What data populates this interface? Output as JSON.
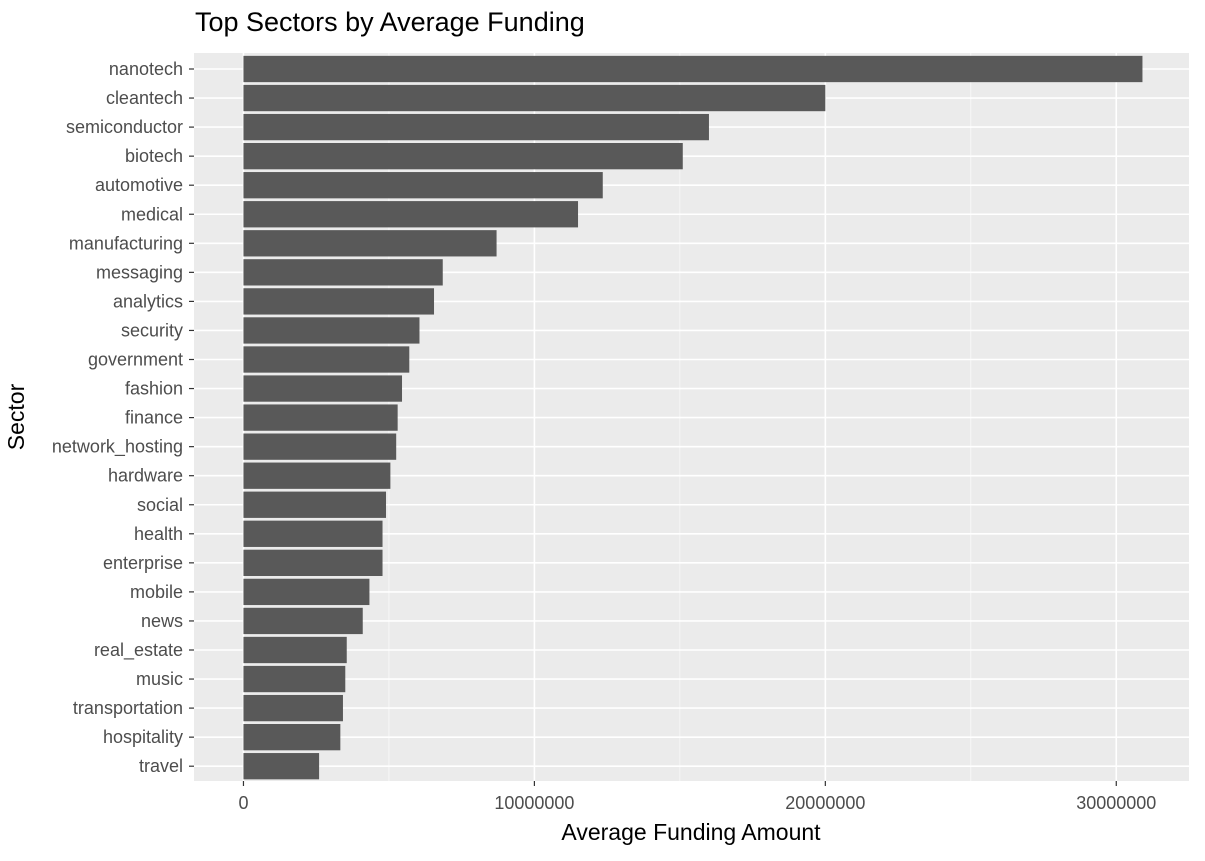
{
  "chart_data": {
    "type": "bar",
    "orientation": "horizontal",
    "title": "Top Sectors by Average Funding",
    "xlabel": "Average Funding Amount",
    "ylabel": "Sector",
    "categories": [
      "nanotech",
      "cleantech",
      "semiconductor",
      "biotech",
      "automotive",
      "medical",
      "manufacturing",
      "messaging",
      "analytics",
      "security",
      "government",
      "fashion",
      "finance",
      "network_hosting",
      "hardware",
      "social",
      "health",
      "enterprise",
      "mobile",
      "news",
      "real_estate",
      "music",
      "transportation",
      "hospitality",
      "travel"
    ],
    "values": [
      30900000,
      20000000,
      16000000,
      15100000,
      12350000,
      11500000,
      8700000,
      6850000,
      6550000,
      6050000,
      5700000,
      5450000,
      5300000,
      5250000,
      5050000,
      4900000,
      4780000,
      4780000,
      4330000,
      4100000,
      3550000,
      3500000,
      3420000,
      3330000,
      2600000
    ],
    "xlim": [
      -1700000,
      32500000
    ],
    "xticks": [
      0,
      10000000,
      20000000,
      30000000
    ],
    "xtick_labels": [
      "0",
      "10000000",
      "20000000",
      "30000000"
    ],
    "grid": true,
    "legend": "none",
    "colors": {
      "bar": "#595959",
      "panel": "#ebebeb",
      "grid_major": "#ffffff",
      "tick_text": "#4d4d4d",
      "tick_mark": "#333333"
    }
  }
}
